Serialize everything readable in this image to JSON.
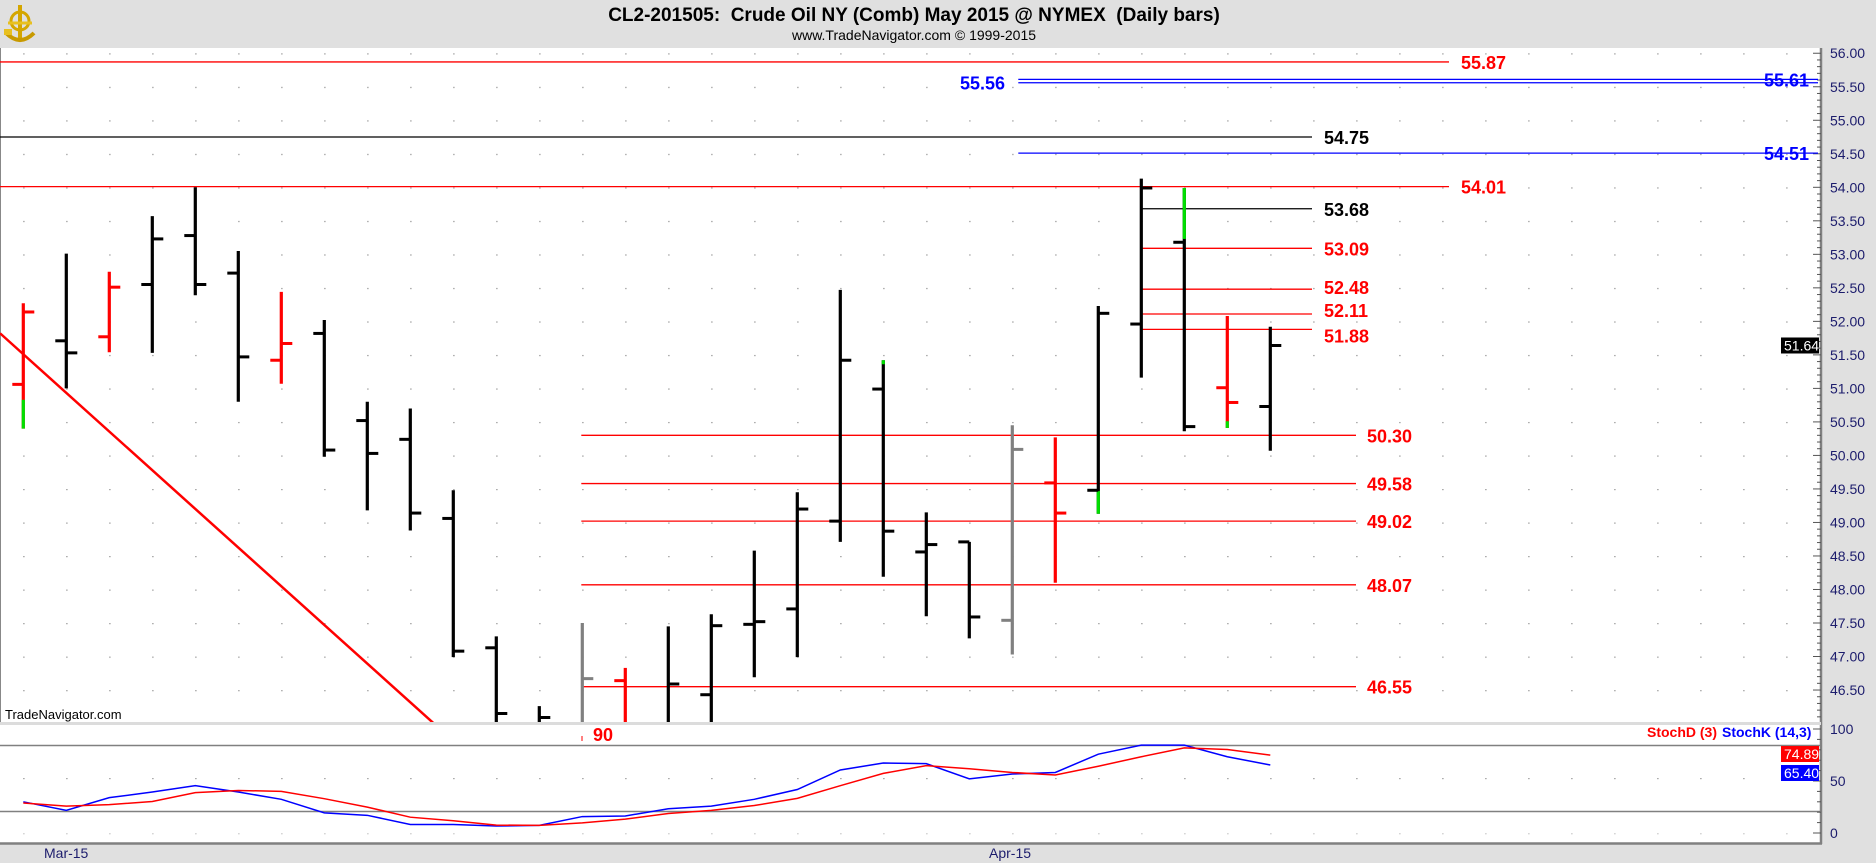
{
  "header": {
    "title": "CL2-201505:  Crude Oil NY (Comb) May 2015 @ NYMEX  (Daily bars)",
    "subtitle": "www.TradeNavigator.com © 1999-2015",
    "logo_icon": "gold-sextant-logo"
  },
  "watermark": "TradeNavigator.com",
  "price_axis": {
    "ticks": [
      "56.00",
      "55.50",
      "55.00",
      "54.50",
      "54.00",
      "53.50",
      "53.00",
      "52.50",
      "52.00",
      "51.50",
      "51.00",
      "50.50",
      "50.00",
      "49.50",
      "49.00",
      "48.50",
      "48.00",
      "47.50",
      "47.00",
      "46.50"
    ],
    "last_price": "51.64"
  },
  "stoch_axis": {
    "ticks": [
      "100",
      "50",
      "0"
    ],
    "d_value": "74.89",
    "k_value": "65.40",
    "legend_d": "StochD (3)",
    "legend_k": "StochK (14,3)"
  },
  "x_axis": {
    "labels": [
      "Mar-15",
      "Apr-15"
    ]
  },
  "partial_label": "90",
  "colors": {
    "up_bar": "#000000",
    "down_bar": "#ff0000",
    "neutral_bar": "#808080",
    "new_extreme": "#00e000",
    "stoch_d": "#ff0000",
    "stoch_k": "#0000ff",
    "axis_text": "#1c1c6c",
    "background": "#e0e0e0"
  },
  "chart_data": {
    "type": "ohlc-bar",
    "title": "CL2-201505:  Crude Oil NY (Comb) May 2015 @ NYMEX  (Daily bars)",
    "ylim": [
      46.0,
      56.1
    ],
    "grid": "dotted",
    "x_tick_labels": [
      {
        "bar": 1,
        "label": "Mar-15"
      },
      {
        "bar": 23,
        "label": "Apr-15"
      }
    ],
    "bars": [
      {
        "o": 51.06,
        "h": 52.27,
        "l": 50.4,
        "c": 52.14,
        "color": "red",
        "green_span": [
          50.83,
          50.4
        ]
      },
      {
        "o": 51.71,
        "h": 53.01,
        "l": 51.0,
        "c": 51.53,
        "color": "black"
      },
      {
        "o": 51.77,
        "h": 52.74,
        "l": 51.54,
        "c": 52.51,
        "color": "red"
      },
      {
        "o": 52.55,
        "h": 53.57,
        "l": 51.53,
        "c": 53.23,
        "color": "black"
      },
      {
        "o": 53.28,
        "h": 54.0,
        "l": 52.39,
        "c": 52.55,
        "color": "black"
      },
      {
        "o": 52.72,
        "h": 53.05,
        "l": 50.8,
        "c": 51.47,
        "color": "black"
      },
      {
        "o": 51.42,
        "h": 52.44,
        "l": 51.07,
        "c": 51.67,
        "color": "red"
      },
      {
        "o": 51.82,
        "h": 52.02,
        "l": 49.98,
        "c": 50.08,
        "color": "black"
      },
      {
        "o": 50.52,
        "h": 50.8,
        "l": 49.18,
        "c": 50.03,
        "color": "black"
      },
      {
        "o": 50.24,
        "h": 50.7,
        "l": 48.88,
        "c": 49.14,
        "color": "black"
      },
      {
        "o": 49.06,
        "h": 49.48,
        "l": 46.99,
        "c": 47.08,
        "color": "black"
      },
      {
        "o": 47.13,
        "h": 47.3,
        "l": null,
        "c": 46.15,
        "color": "black"
      },
      {
        "o": null,
        "h": 46.26,
        "l": null,
        "c": 46.09,
        "color": "black"
      },
      {
        "o": null,
        "h": 47.5,
        "l": null,
        "c": 46.67,
        "color": "gray"
      },
      {
        "o": 46.64,
        "h": 46.83,
        "l": null,
        "c": null,
        "color": "red"
      },
      {
        "o": null,
        "h": 47.45,
        "l": null,
        "c": 46.59,
        "color": "black"
      },
      {
        "o": 46.43,
        "h": 47.63,
        "l": null,
        "c": 47.46,
        "color": "black"
      },
      {
        "o": 47.48,
        "h": 48.58,
        "l": 46.69,
        "c": 47.52,
        "color": "black"
      },
      {
        "o": 47.71,
        "h": 49.45,
        "l": 46.99,
        "c": 49.2,
        "color": "black"
      },
      {
        "o": 49.02,
        "h": 52.47,
        "l": 48.71,
        "c": 51.42,
        "color": "black"
      },
      {
        "o": 50.99,
        "h": 51.42,
        "l": 48.19,
        "c": 48.87,
        "color": "black",
        "green_span": [
          51.42,
          51.36
        ]
      },
      {
        "o": 48.56,
        "h": 49.15,
        "l": 47.6,
        "c": 48.67,
        "color": "black"
      },
      {
        "o": 48.71,
        "h": 48.71,
        "l": 47.27,
        "c": 47.59,
        "color": "black"
      },
      {
        "o": 47.54,
        "h": 50.45,
        "l": 47.03,
        "c": 50.09,
        "color": "gray"
      },
      {
        "o": 49.59,
        "h": 50.27,
        "l": 48.1,
        "c": 49.14,
        "color": "red"
      },
      {
        "o": 49.48,
        "h": 52.23,
        "l": 49.13,
        "c": 52.12,
        "color": "black",
        "green_span": [
          49.47,
          49.13
        ]
      },
      {
        "o": 51.96,
        "h": 54.13,
        "l": 51.16,
        "c": 53.99,
        "color": "black"
      },
      {
        "o": 53.18,
        "h": 53.99,
        "l": 50.36,
        "c": 50.43,
        "color": "black",
        "green_span": [
          53.99,
          53.23
        ]
      },
      {
        "o": 51.01,
        "h": 52.08,
        "l": 50.41,
        "c": 50.79,
        "color": "red",
        "green_span": [
          50.51,
          50.41
        ]
      },
      {
        "o": 50.73,
        "h": 51.92,
        "l": 50.07,
        "c": 51.64,
        "color": "black"
      }
    ],
    "levels": [
      {
        "value": 55.87,
        "label": "55.87",
        "color": "#ff0000",
        "start_bar": 0
      },
      {
        "value": 55.56,
        "label": "55.56",
        "color": "#0000ff",
        "start_bar": 24
      },
      {
        "value": 55.61,
        "label": "55.61",
        "color": "#0000ff",
        "start_bar": 24
      },
      {
        "value": 54.75,
        "label": "54.75",
        "color": "#000000",
        "start_bar": 0
      },
      {
        "value": 54.51,
        "label": "54.51",
        "color": "#0000ff",
        "start_bar": 24
      },
      {
        "value": 54.01,
        "label": "54.01",
        "color": "#ff0000",
        "start_bar": 0
      },
      {
        "value": 53.68,
        "label": "53.68",
        "color": "#000000",
        "start_bar": 27
      },
      {
        "value": 53.09,
        "label": "53.09",
        "color": "#ff0000",
        "start_bar": 27
      },
      {
        "value": 52.48,
        "label": "52.48",
        "color": "#ff0000",
        "start_bar": 27
      },
      {
        "value": 52.11,
        "label": "52.11",
        "color": "#ff0000",
        "start_bar": 27
      },
      {
        "value": 51.88,
        "label": "51.88",
        "color": "#ff0000",
        "start_bar": 27
      },
      {
        "value": 50.3,
        "label": "50.30",
        "color": "#ff0000",
        "start_bar": 14
      },
      {
        "value": 49.58,
        "label": "49.58",
        "color": "#ff0000",
        "start_bar": 14
      },
      {
        "value": 49.02,
        "label": "49.02",
        "color": "#ff0000",
        "start_bar": 14
      },
      {
        "value": 48.07,
        "label": "48.07",
        "color": "#ff0000",
        "start_bar": 14
      },
      {
        "value": 46.55,
        "label": "46.55",
        "color": "#ff0000",
        "start_bar": 14
      }
    ],
    "trendline": {
      "color": "#ff0000",
      "from": {
        "bar": 1,
        "price": 51.51
      },
      "to": {
        "bar": 11,
        "price": 45.74
      }
    },
    "stochastic": {
      "ylim": [
        0,
        100
      ],
      "reference_lines": [
        20,
        80
      ],
      "series": [
        {
          "name": "StochK (14,3)",
          "color": "#0000ff",
          "values": [
            30.0,
            21.8,
            34.0,
            39.4,
            45.5,
            39.4,
            32.4,
            19.4,
            17.0,
            8.2,
            8.2,
            6.7,
            7.3,
            15.8,
            16.4,
            23.3,
            25.8,
            32.4,
            41.8,
            60.6,
            67.3,
            66.7,
            52.1,
            56.7,
            58.2,
            75.8,
            84.5,
            84.5,
            73.3,
            65.4
          ]
        },
        {
          "name": "StochD (3)",
          "color": "#ff0000",
          "values": [
            28.8,
            25.8,
            27.3,
            30.3,
            38.8,
            40.9,
            40.0,
            33.0,
            24.9,
            15.2,
            11.8,
            7.6,
            7.3,
            9.7,
            13.3,
            18.8,
            21.8,
            26.4,
            33.3,
            45.5,
            57.3,
            64.8,
            61.8,
            58.2,
            55.8,
            64.2,
            73.3,
            81.8,
            80.3,
            74.89
          ]
        }
      ]
    }
  }
}
